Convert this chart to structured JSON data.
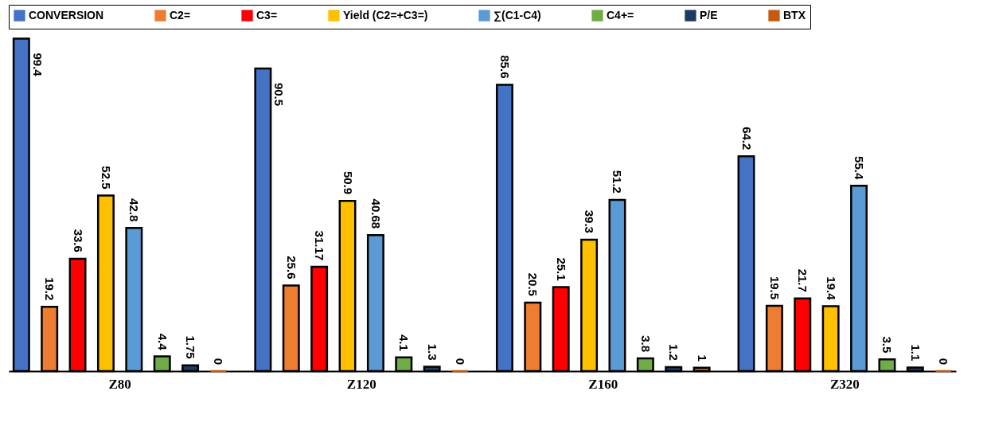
{
  "chart_data": {
    "type": "bar",
    "categories": [
      "Z80",
      "Z120",
      "Z160",
      "Z320"
    ],
    "series": [
      {
        "name": "CONVERSION",
        "color": "#4472c4",
        "values": [
          99.4,
          90.5,
          85.6,
          64.2
        ]
      },
      {
        "name": "C2=",
        "color": "#ed7d31",
        "values": [
          19.2,
          25.6,
          20.5,
          19.5
        ]
      },
      {
        "name": "C3=",
        "color": "#ff0000",
        "values": [
          33.6,
          31.17,
          25.1,
          21.7
        ]
      },
      {
        "name": "Yield (C2=+C3=)",
        "color": "#ffc000",
        "values": [
          52.5,
          50.9,
          39.3,
          19.4
        ]
      },
      {
        "name": "∑(C1-C4)",
        "color": "#5b9bd5",
        "values": [
          42.8,
          40.68,
          51.2,
          55.4
        ]
      },
      {
        "name": "C4+=",
        "color": "#70ad47",
        "values": [
          4.4,
          4.1,
          3.8,
          3.5
        ]
      },
      {
        "name": "P/E",
        "color": "#1f3864",
        "values": [
          1.75,
          1.3,
          1.2,
          1.1
        ]
      },
      {
        "name": "BTX",
        "color": "#c55a11",
        "values": [
          0,
          0,
          1,
          0
        ]
      }
    ],
    "ylim": [
      0,
      100
    ],
    "data_labels": true,
    "legend": "top",
    "tick_labels": "x",
    "grid": false
  }
}
